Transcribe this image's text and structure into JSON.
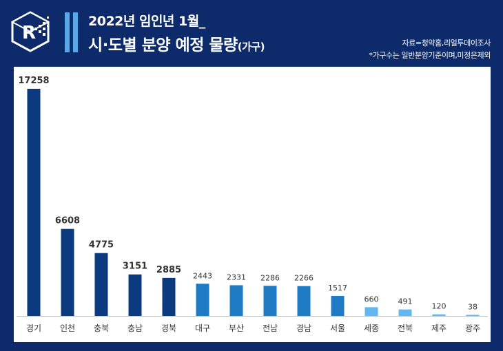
{
  "header": {
    "title_line1": "2022년 임인년 1월_",
    "title_line2": "시·도별 분양 예정 물량",
    "title_unit": "(가구)",
    "source": "자료=청약홈,리얼투데이조사",
    "note": "*가구수는 일반분양기준이며,미정은제외"
  },
  "chart_data": {
    "type": "bar",
    "categories": [
      "경기",
      "인천",
      "충북",
      "충남",
      "경북",
      "대구",
      "부산",
      "전남",
      "경남",
      "서울",
      "세종",
      "전북",
      "제주",
      "광주"
    ],
    "values": [
      17258,
      6608,
      4775,
      3151,
      2885,
      2443,
      2331,
      2286,
      2266,
      1517,
      660,
      491,
      120,
      38
    ],
    "value_labels": [
      "17258",
      "6608",
      "4775",
      "3151",
      "2885",
      "2443",
      "2331",
      "2286",
      "2266",
      "1517",
      "660",
      "491",
      "120",
      "38"
    ],
    "colors": [
      "#0c3a7e",
      "#0c3a7e",
      "#0c3a7e",
      "#0c3a7e",
      "#0c3a7e",
      "#1e7bc4",
      "#1e7bc4",
      "#1e7bc4",
      "#1e7bc4",
      "#1e7bc4",
      "#63b6ee",
      "#63b6ee",
      "#63b6ee",
      "#63b6ee"
    ],
    "bold_labels": [
      true,
      true,
      true,
      true,
      true,
      false,
      false,
      false,
      false,
      false,
      false,
      false,
      false,
      false
    ],
    "ylim": [
      0,
      17258
    ],
    "grid": false,
    "legend": "none"
  },
  "colors": {
    "background": "#0d2a6b",
    "accent": "#5aa9e6",
    "panel": "#ffffff",
    "axis": "#bfbfbf"
  }
}
